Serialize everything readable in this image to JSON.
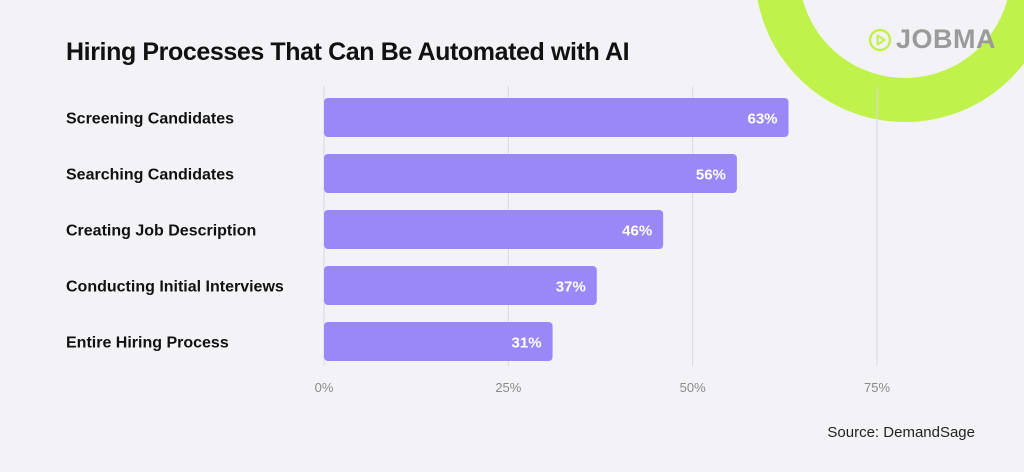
{
  "brand": {
    "name": "JOBMA",
    "accent_color": "#bff24a",
    "logo_icon": "play-circle-icon"
  },
  "source": "Source: DemandSage",
  "chart_data": {
    "type": "bar",
    "orientation": "horizontal",
    "title": "Hiring Processes That Can Be Automated with AI",
    "xlabel": "",
    "ylabel": "",
    "categories": [
      "Screening Candidates",
      "Searching Candidates",
      "Creating Job Description",
      "Conducting Initial Interviews",
      "Entire Hiring Process"
    ],
    "values": [
      63,
      56,
      46,
      37,
      31
    ],
    "data_labels": [
      "63%",
      "56%",
      "46%",
      "37%",
      "31%"
    ],
    "xlim": [
      0,
      75
    ],
    "xticks": [
      0,
      25,
      50,
      75
    ],
    "xtick_labels": [
      "0%",
      "25%",
      "50%",
      "75%"
    ],
    "grid": true,
    "legend": "none",
    "bar_color": "#9b88f8"
  }
}
